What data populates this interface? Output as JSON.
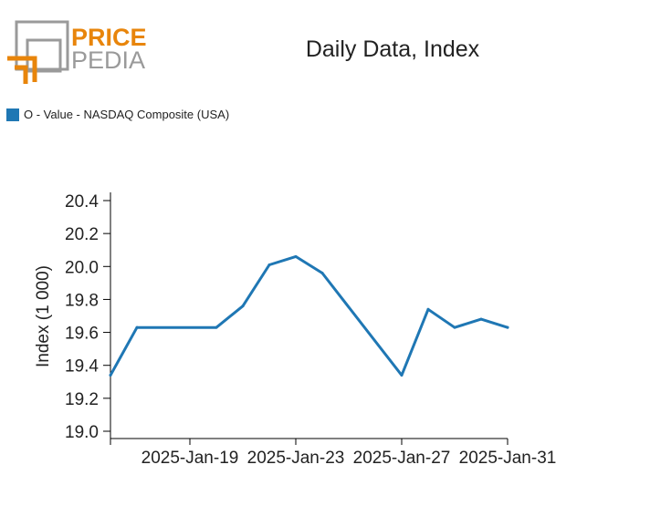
{
  "brand": {
    "line1": "PRICE",
    "line2": "PEDIA",
    "accent": "#e8850b",
    "gray": "#9a9a9a"
  },
  "chart_data": {
    "type": "line",
    "title": "Daily Data, Index",
    "ylabel": "Index (1 000)",
    "xlabel": "",
    "ylim": [
      19.0,
      20.4
    ],
    "yticks": [
      "19.0",
      "19.2",
      "19.4",
      "19.6",
      "19.8",
      "20.0",
      "20.2",
      "20.4"
    ],
    "x_range": [
      "2025-01-16",
      "2025-01-31"
    ],
    "xticks": [
      {
        "date": "2025-01-16",
        "label": ""
      },
      {
        "date": "2025-01-19",
        "label": "2025-Jan-19"
      },
      {
        "date": "2025-01-23",
        "label": "2025-Jan-23"
      },
      {
        "date": "2025-01-27",
        "label": "2025-Jan-27"
      },
      {
        "date": "2025-01-31",
        "label": "2025-Jan-31"
      }
    ],
    "grid": false,
    "legend_position": "top-left",
    "series": [
      {
        "name": "O - Value - NASDAQ Composite (USA)",
        "color": "#1f77b4",
        "x": [
          "2025-01-16",
          "2025-01-17",
          "2025-01-20",
          "2025-01-21",
          "2025-01-22",
          "2025-01-23",
          "2025-01-24",
          "2025-01-27",
          "2025-01-28",
          "2025-01-29",
          "2025-01-30",
          "2025-01-31"
        ],
        "y": [
          19.34,
          19.63,
          19.63,
          19.76,
          20.01,
          20.06,
          19.96,
          19.34,
          19.74,
          19.63,
          19.68,
          19.63
        ]
      }
    ]
  }
}
